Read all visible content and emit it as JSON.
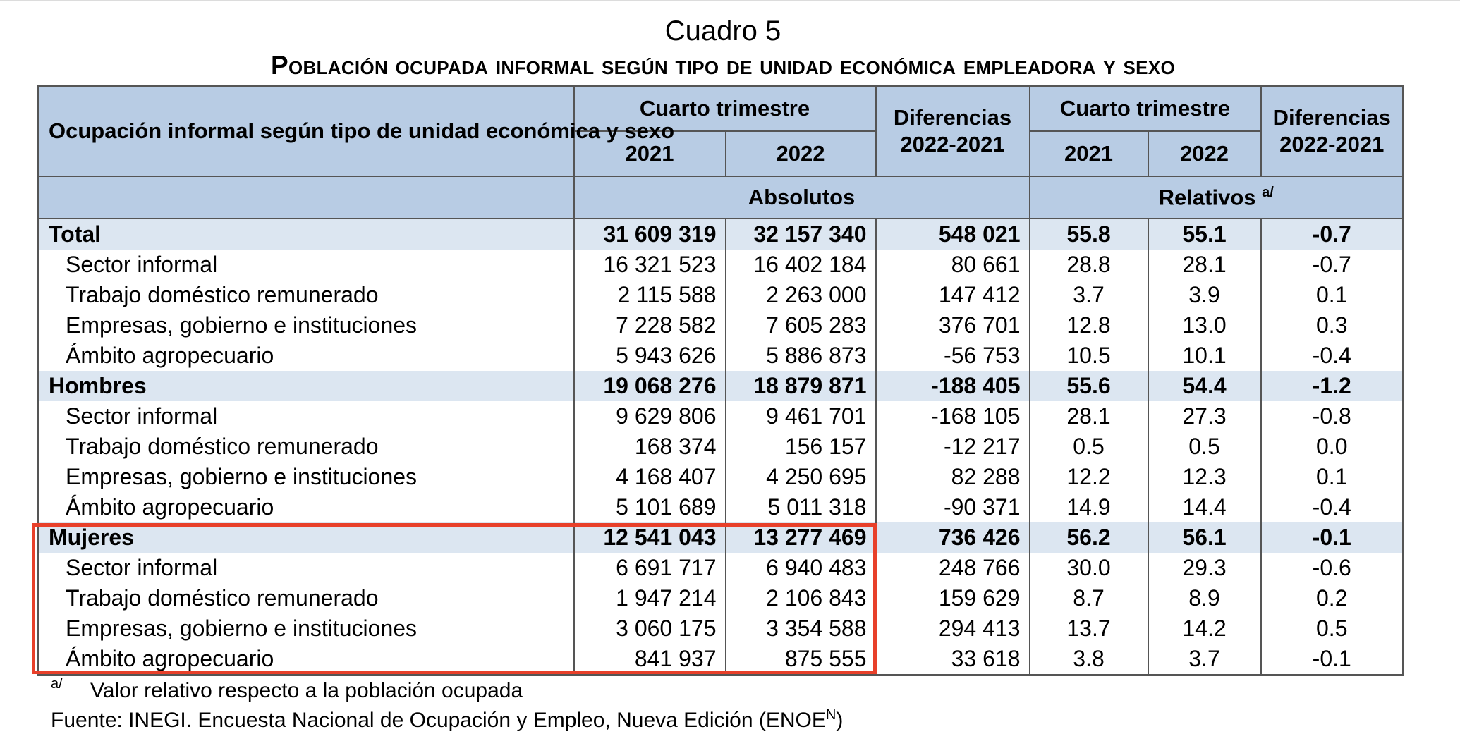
{
  "caption": {
    "number": "Cuadro 5",
    "title": "Población ocupada informal según tipo de unidad económica empleadora y sexo"
  },
  "header": {
    "row_label": "Ocupación informal según tipo de unidad económica y sexo",
    "period_abs": "Cuarto trimestre",
    "diff_abs": "Diferencias 2022-2021",
    "period_rel": "Cuarto trimestre",
    "diff_rel": "Diferencias 2022-2021",
    "year1": "2021",
    "year2": "2022",
    "year3": "2021",
    "year4": "2022",
    "absolutos": "Absolutos",
    "relativos": "Relativos",
    "relativos_mark": "a/"
  },
  "rows": [
    {
      "label": "Total",
      "v2021": "31 609 319",
      "v2022": "32 157 340",
      "dif": "548 021",
      "r2021": "55.8",
      "r2022": "55.1",
      "rdif": "-0.7"
    },
    {
      "label": "Sector informal",
      "v2021": "16 321 523",
      "v2022": "16 402 184",
      "dif": "80 661",
      "r2021": "28.8",
      "r2022": "28.1",
      "rdif": "-0.7"
    },
    {
      "label": "Trabajo doméstico remunerado",
      "v2021": "2 115 588",
      "v2022": "2 263 000",
      "dif": "147 412",
      "r2021": "3.7",
      "r2022": "3.9",
      "rdif": "0.1"
    },
    {
      "label": "Empresas, gobierno e instituciones",
      "v2021": "7 228 582",
      "v2022": "7 605 283",
      "dif": "376 701",
      "r2021": "12.8",
      "r2022": "13.0",
      "rdif": "0.3"
    },
    {
      "label": "Ámbito agropecuario",
      "v2021": "5 943 626",
      "v2022": "5 886 873",
      "dif": "-56 753",
      "r2021": "10.5",
      "r2022": "10.1",
      "rdif": "-0.4"
    },
    {
      "label": "Hombres",
      "v2021": "19 068 276",
      "v2022": "18 879 871",
      "dif": "-188 405",
      "r2021": "55.6",
      "r2022": "54.4",
      "rdif": "-1.2"
    },
    {
      "label": "Sector informal",
      "v2021": "9 629 806",
      "v2022": "9 461 701",
      "dif": "-168 105",
      "r2021": "28.1",
      "r2022": "27.3",
      "rdif": "-0.8"
    },
    {
      "label": "Trabajo doméstico remunerado",
      "v2021": "168 374",
      "v2022": "156 157",
      "dif": "-12 217",
      "r2021": "0.5",
      "r2022": "0.5",
      "rdif": "0.0"
    },
    {
      "label": "Empresas, gobierno e instituciones",
      "v2021": "4 168 407",
      "v2022": "4 250 695",
      "dif": "82 288",
      "r2021": "12.2",
      "r2022": "12.3",
      "rdif": "0.1"
    },
    {
      "label": "Ámbito agropecuario",
      "v2021": "5 101 689",
      "v2022": "5 011 318",
      "dif": "-90 371",
      "r2021": "14.9",
      "r2022": "14.4",
      "rdif": "-0.4"
    },
    {
      "label": "Mujeres",
      "v2021": "12 541 043",
      "v2022": "13 277 469",
      "dif": "736 426",
      "r2021": "56.2",
      "r2022": "56.1",
      "rdif": "-0.1"
    },
    {
      "label": "Sector informal",
      "v2021": "6 691 717",
      "v2022": "6 940 483",
      "dif": "248 766",
      "r2021": "30.0",
      "r2022": "29.3",
      "rdif": "-0.6"
    },
    {
      "label": "Trabajo doméstico remunerado",
      "v2021": "1 947 214",
      "v2022": "2 106 843",
      "dif": "159 629",
      "r2021": "8.7",
      "r2022": "8.9",
      "rdif": "0.2"
    },
    {
      "label": "Empresas, gobierno e instituciones",
      "v2021": "3 060 175",
      "v2022": "3 354 588",
      "dif": "294 413",
      "r2021": "13.7",
      "r2022": "14.2",
      "rdif": "0.5"
    },
    {
      "label": "Ámbito agropecuario",
      "v2021": "841 937",
      "v2022": "875 555",
      "dif": "33 618",
      "r2021": "3.8",
      "r2022": "3.7",
      "rdif": "-0.1"
    }
  ],
  "footnotes": {
    "mark": "a/",
    "note": "Valor relativo respecto a la población ocupada",
    "source": "Fuente: INEGI. Encuesta Nacional de Ocupación y Empleo, Nueva Edición (ENOE",
    "source_sup": "N",
    "source_end": ")"
  },
  "colors": {
    "header_bg": "#b8cce4",
    "group_row_bg": "#dce6f1",
    "highlight_border": "#e8402a"
  }
}
